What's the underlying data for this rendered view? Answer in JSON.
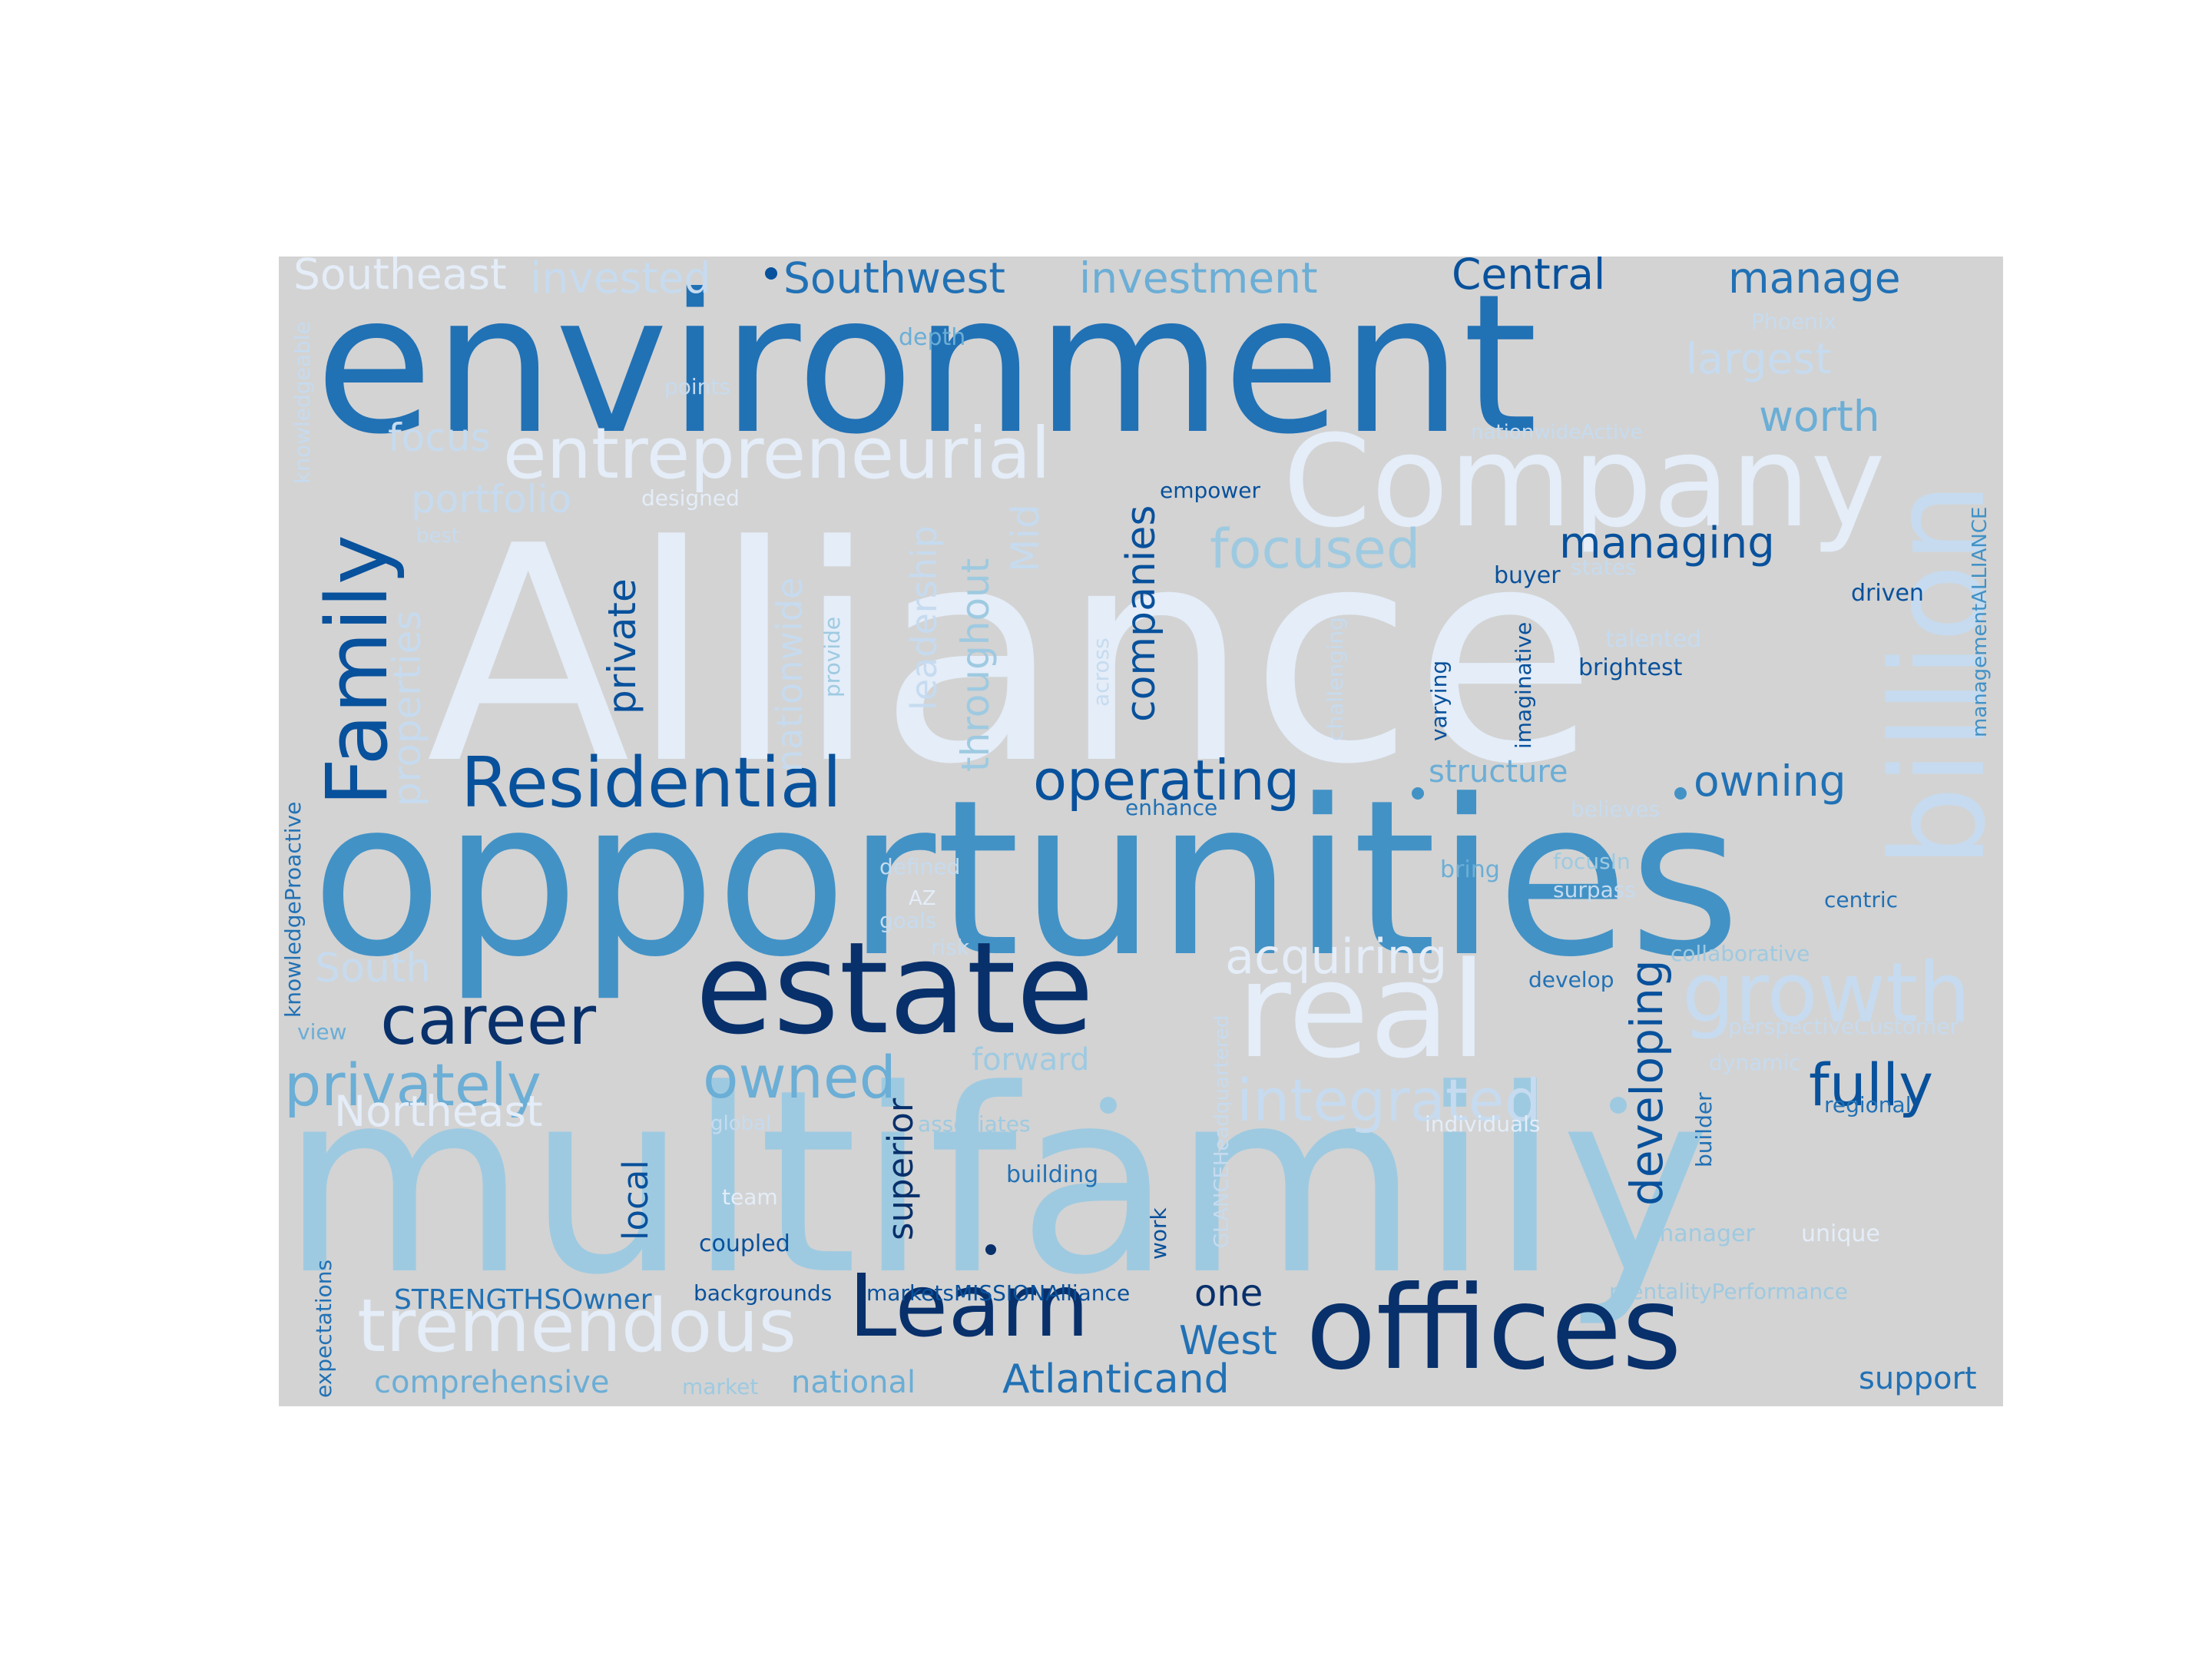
{
  "palette": {
    "background": "#d3d3d3",
    "page": "#ffffff",
    "c1": "#e4edf8",
    "c2": "#c6dbef",
    "c3": "#9ecae1",
    "c4": "#6baed6",
    "c5": "#4292c6",
    "c6": "#2171b5",
    "c7": "#08519c",
    "c8": "#08306b"
  },
  "words": [
    "Alliance",
    "multifamily",
    "opportunities",
    "environment",
    "offices",
    "estate",
    "real",
    "Company",
    "billion",
    "Family",
    "entrepreneurial",
    "Learn",
    "tremendous",
    "Residential",
    "career",
    "growth",
    "owned",
    "privately",
    "integrated",
    "operating",
    "fully",
    "focused",
    "acquiring",
    "developing",
    "managing",
    "owning",
    "companies",
    "private",
    "nationwide",
    "leadership",
    "throughout",
    "Mid",
    "properties",
    "portfolio",
    "Southeast",
    "invested",
    "Southwest",
    "investment",
    "Central",
    "manage",
    "largest",
    "worth",
    "focus",
    "South",
    "Northeast",
    "superior",
    "local",
    "one",
    "West",
    "Atlanticand",
    "comprehensive",
    "national",
    "support",
    "STRENGTHSOwner",
    "structure",
    "Phoenix",
    "depth",
    "points",
    "nationwideActive",
    "designed",
    "empower",
    "best",
    "buyer",
    "states",
    "driven",
    "talented",
    "brightest",
    "imaginative",
    "varying",
    "challenging",
    "across",
    "provide",
    "enhance",
    "believes",
    "bring",
    "focusIn",
    "surpass",
    "centric",
    "defined",
    "AZ",
    "goals",
    "risk",
    "collaborative",
    "develop",
    "perspectiveCustomer",
    "dynamic",
    "regional",
    "forward",
    "associates",
    "individuals",
    "building",
    "builder",
    "team",
    "coupled",
    "manager",
    "unique",
    "work",
    "backgrounds",
    "marketsMISSIONAlliance",
    "mentalityPerformance",
    "market",
    "expectations",
    "knowledgeProactive",
    "view",
    "knowledgeable",
    "GLANCEHeadquartered",
    "managementALLIANCE",
    "global"
  ]
}
